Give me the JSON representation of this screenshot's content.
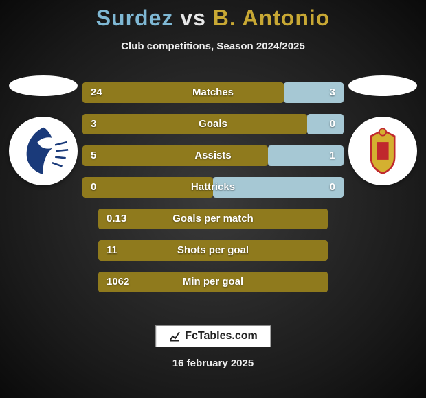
{
  "title": {
    "player1": "Surdez",
    "vs": "vs",
    "player2": "B. Antonio"
  },
  "subtitle": "Club competitions, Season 2024/2025",
  "rows": {
    "bar_color_left": "#8f7a1d",
    "bar_color_right": "#a6c8d4",
    "bar_color_single": "#8f7a1d",
    "split": [
      {
        "label": "Matches",
        "left_val": "24",
        "right_val": "3",
        "left_pct": 77,
        "right_pct": 23
      },
      {
        "label": "Goals",
        "left_val": "3",
        "right_val": "0",
        "left_pct": 86,
        "right_pct": 14
      },
      {
        "label": "Assists",
        "left_val": "5",
        "right_val": "1",
        "left_pct": 71,
        "right_pct": 29
      },
      {
        "label": "Hattricks",
        "left_val": "0",
        "right_val": "0",
        "left_pct": 50,
        "right_pct": 50
      }
    ],
    "single": [
      {
        "label": "Goals per match",
        "val": "0.13"
      },
      {
        "label": "Shots per goal",
        "val": "11"
      },
      {
        "label": "Min per goal",
        "val": "1062"
      }
    ]
  },
  "branding": "FcTables.com",
  "date": "16 february 2025",
  "logos": {
    "left": {
      "name": "club-logo-left",
      "bg": "#ffffff",
      "accent": "#1a3a7a"
    },
    "right": {
      "name": "club-logo-right",
      "bg": "#ffffff",
      "accent": "#d4b030",
      "accent2": "#c0282d"
    }
  }
}
